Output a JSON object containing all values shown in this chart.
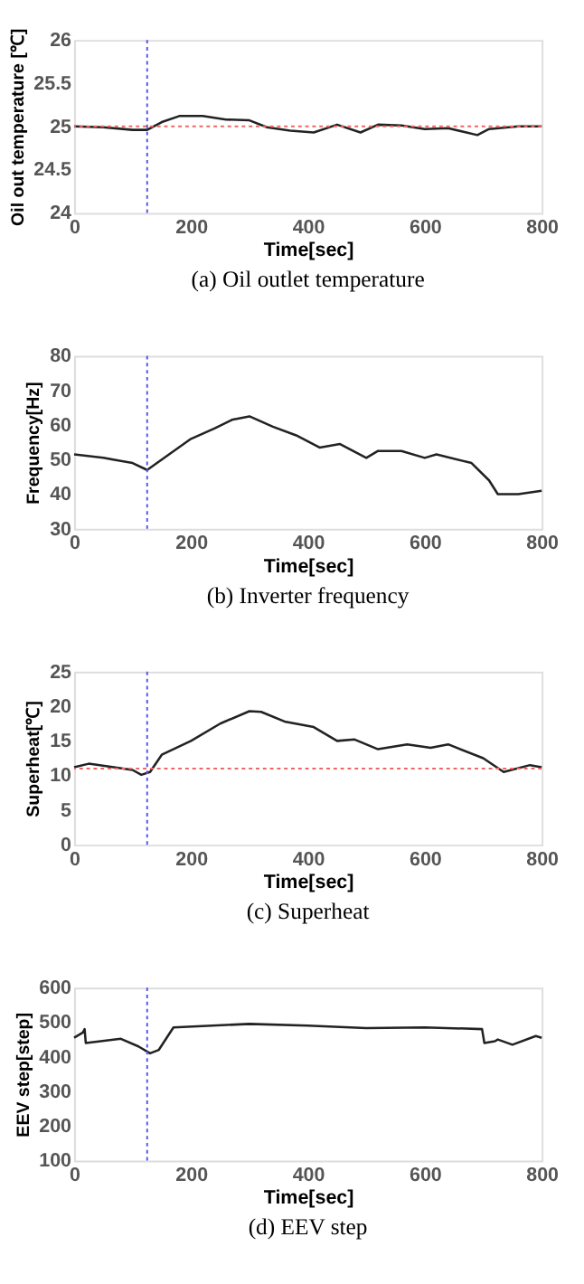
{
  "chart_data": [
    {
      "type": "line",
      "xlabel": "Time[sec]",
      "ylabel": "Oil out temperature [℃]",
      "annotations": [
        "(a)  Oil  outlet  temperature"
      ],
      "xlim": [
        0,
        800
      ],
      "xticks": [
        0,
        200,
        400,
        600,
        800
      ],
      "ylim": [
        24,
        26
      ],
      "yticks": [
        24,
        24.5,
        25,
        25.5,
        26
      ],
      "grid": false,
      "x": [
        0,
        50,
        100,
        125,
        150,
        180,
        220,
        260,
        300,
        330,
        370,
        410,
        450,
        490,
        520,
        560,
        600,
        640,
        690,
        710,
        760,
        800
      ],
      "series": [
        {
          "color": "#222222",
          "values": [
            25.0,
            24.99,
            24.96,
            24.96,
            25.05,
            25.12,
            25.12,
            25.08,
            25.07,
            24.99,
            24.95,
            24.93,
            25.02,
            24.93,
            25.02,
            25.01,
            24.97,
            24.98,
            24.9,
            24.97,
            25.0,
            25.0
          ]
        }
      ],
      "ref_lines": [
        {
          "axis": "x",
          "value": 125,
          "color": "#5555ee",
          "line_style": "dotted"
        },
        {
          "axis": "y",
          "value": 25,
          "color": "#ee6666",
          "line_style": "dotted"
        }
      ]
    },
    {
      "type": "line",
      "xlabel": "Time[sec]",
      "ylabel": "Frequency[Hz]",
      "annotations": [
        "(b)  Inverter  frequency"
      ],
      "xlim": [
        0,
        800
      ],
      "xticks": [
        0,
        200,
        400,
        600,
        800
      ],
      "ylim": [
        30,
        80
      ],
      "yticks": [
        30,
        40,
        50,
        60,
        70,
        80
      ],
      "grid": false,
      "x": [
        0,
        50,
        100,
        125,
        150,
        200,
        240,
        270,
        300,
        340,
        380,
        420,
        455,
        500,
        520,
        560,
        600,
        620,
        680,
        710,
        725,
        760,
        800
      ],
      "series": [
        {
          "color": "#222222",
          "values": [
            51.5,
            50.5,
            49,
            47,
            50,
            56,
            59,
            61.5,
            62.5,
            59.5,
            57,
            53.5,
            54.5,
            50.5,
            52.5,
            52.5,
            50.5,
            51.5,
            49,
            44,
            40,
            40,
            41
          ]
        }
      ],
      "ref_lines": [
        {
          "axis": "x",
          "value": 125,
          "color": "#5555ee",
          "line_style": "dotted"
        }
      ]
    },
    {
      "type": "line",
      "xlabel": "Time[sec]",
      "ylabel": "Superheat[℃]",
      "annotations": [
        "(c)  Superheat"
      ],
      "xlim": [
        0,
        800
      ],
      "xticks": [
        0,
        200,
        400,
        600,
        800
      ],
      "ylim": [
        0,
        25
      ],
      "yticks": [
        0,
        5,
        10,
        15,
        20,
        25
      ],
      "grid": false,
      "x": [
        0,
        25,
        60,
        100,
        115,
        130,
        150,
        200,
        250,
        300,
        320,
        360,
        410,
        450,
        480,
        520,
        570,
        610,
        640,
        700,
        735,
        780,
        800
      ],
      "series": [
        {
          "color": "#222222",
          "values": [
            11.2,
            11.7,
            11.3,
            10.8,
            10.1,
            10.5,
            13,
            15,
            17.5,
            19.3,
            19.2,
            17.8,
            17,
            15,
            15.2,
            13.8,
            14.5,
            14,
            14.5,
            12.5,
            10.5,
            11.5,
            11.2
          ]
        }
      ],
      "ref_lines": [
        {
          "axis": "x",
          "value": 125,
          "color": "#5555ee",
          "line_style": "dotted"
        },
        {
          "axis": "y",
          "value": 11,
          "color": "#ee6666",
          "line_style": "dotted"
        }
      ]
    },
    {
      "type": "line",
      "xlabel": "Time[sec]",
      "ylabel": "EEV step[step]",
      "annotations": [
        "(d)  EEV  step"
      ],
      "xlim": [
        0,
        800
      ],
      "xticks": [
        0,
        200,
        400,
        600,
        800
      ],
      "ylim": [
        100,
        600
      ],
      "yticks": [
        100,
        200,
        300,
        400,
        500,
        600
      ],
      "grid": false,
      "x": [
        0,
        15,
        18,
        20,
        80,
        110,
        130,
        145,
        170,
        300,
        400,
        500,
        600,
        698,
        702,
        720,
        725,
        750,
        790,
        800
      ],
      "series": [
        {
          "color": "#222222",
          "values": [
            455,
            470,
            480,
            440,
            452,
            430,
            410,
            420,
            485,
            495,
            490,
            483,
            485,
            480,
            440,
            445,
            450,
            435,
            460,
            455
          ]
        }
      ],
      "ref_lines": [
        {
          "axis": "x",
          "value": 125,
          "color": "#5555ee",
          "line_style": "dotted"
        }
      ]
    }
  ]
}
